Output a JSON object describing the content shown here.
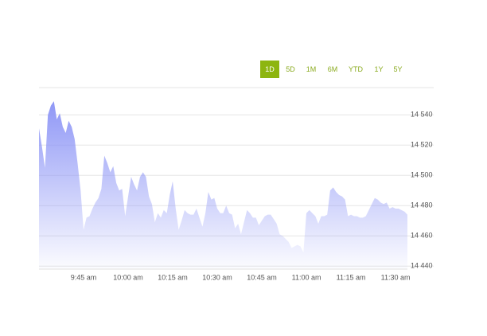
{
  "controls": {
    "ranges": [
      "1D",
      "5D",
      "1M",
      "6M",
      "YTD",
      "1Y",
      "5Y"
    ],
    "active": "1D"
  },
  "chart_data": {
    "type": "area",
    "categories": [
      null,
      null,
      null,
      null,
      null,
      null,
      null,
      null,
      null,
      null,
      null,
      null,
      null,
      null,
      null,
      "9:45 am",
      null,
      null,
      null,
      null,
      null,
      null,
      null,
      null,
      null,
      null,
      null,
      null,
      null,
      null,
      "10:00 am",
      null,
      null,
      null,
      null,
      null,
      null,
      null,
      null,
      null,
      null,
      null,
      null,
      null,
      null,
      "10:15 am",
      null,
      null,
      null,
      null,
      null,
      null,
      null,
      null,
      null,
      null,
      null,
      null,
      null,
      null,
      "10:30 am",
      null,
      null,
      null,
      null,
      null,
      null,
      null,
      null,
      null,
      null,
      null,
      null,
      null,
      null,
      "10:45 am",
      null,
      null,
      null,
      null,
      null,
      null,
      null,
      null,
      null,
      null,
      null,
      null,
      null,
      null,
      "11:00 am",
      null,
      null,
      null,
      null,
      null,
      null,
      null,
      null,
      null,
      null,
      null,
      null,
      null,
      null,
      "11:15 am",
      null,
      null,
      null,
      null,
      null,
      null,
      null,
      null,
      null,
      null,
      null,
      null,
      null,
      null,
      "11:30 am",
      null,
      null,
      null,
      null
    ],
    "series": [
      {
        "color": "#8f97f6",
        "values": [
          14531,
          14519,
          14505,
          14540,
          14546,
          14549,
          14537,
          14541,
          14532,
          14528,
          14536,
          14532,
          14524,
          14508,
          14490,
          14464,
          14472,
          14473,
          14478,
          14482,
          14485,
          14491,
          14513,
          14508,
          14502,
          14506,
          14495,
          14490,
          14491,
          14473,
          14486,
          14499,
          14494,
          14490,
          14499,
          14502,
          14499,
          14486,
          14481,
          14469,
          14475,
          14472,
          14477,
          14475,
          14487,
          14496,
          14478,
          14464,
          14470,
          14477,
          14475,
          14474,
          14474,
          14478,
          14472,
          14466,
          14475,
          14489,
          14484,
          14485,
          14478,
          14475,
          14475,
          14480,
          14475,
          14474,
          14465,
          14468,
          14461,
          14469,
          14477,
          14475,
          14472,
          14472,
          14467,
          14470,
          14473,
          14474,
          14474,
          14471,
          14468,
          14461,
          14460,
          14458,
          14456,
          14452,
          14453,
          14454,
          14453,
          14449,
          14475,
          14477,
          14475,
          14473,
          14468,
          14473,
          14473,
          14474,
          14490,
          14492,
          14489,
          14487,
          14486,
          14484,
          14473,
          14474,
          14473,
          14473,
          14472,
          14472,
          14473,
          14477,
          14481,
          14485,
          14484,
          14482,
          14481,
          14482,
          14478,
          14479,
          14478,
          14478,
          14477,
          14476,
          14474
        ]
      }
    ],
    "ylim": [
      14438,
      14558
    ],
    "yticks": [
      {
        "value": 14440,
        "label": "14 440"
      },
      {
        "value": 14460,
        "label": "14 460"
      },
      {
        "value": 14480,
        "label": "14 480"
      },
      {
        "value": 14500,
        "label": "14 500"
      },
      {
        "value": 14520,
        "label": "14 520"
      },
      {
        "value": 14540,
        "label": "14 540"
      }
    ],
    "grid": true
  }
}
